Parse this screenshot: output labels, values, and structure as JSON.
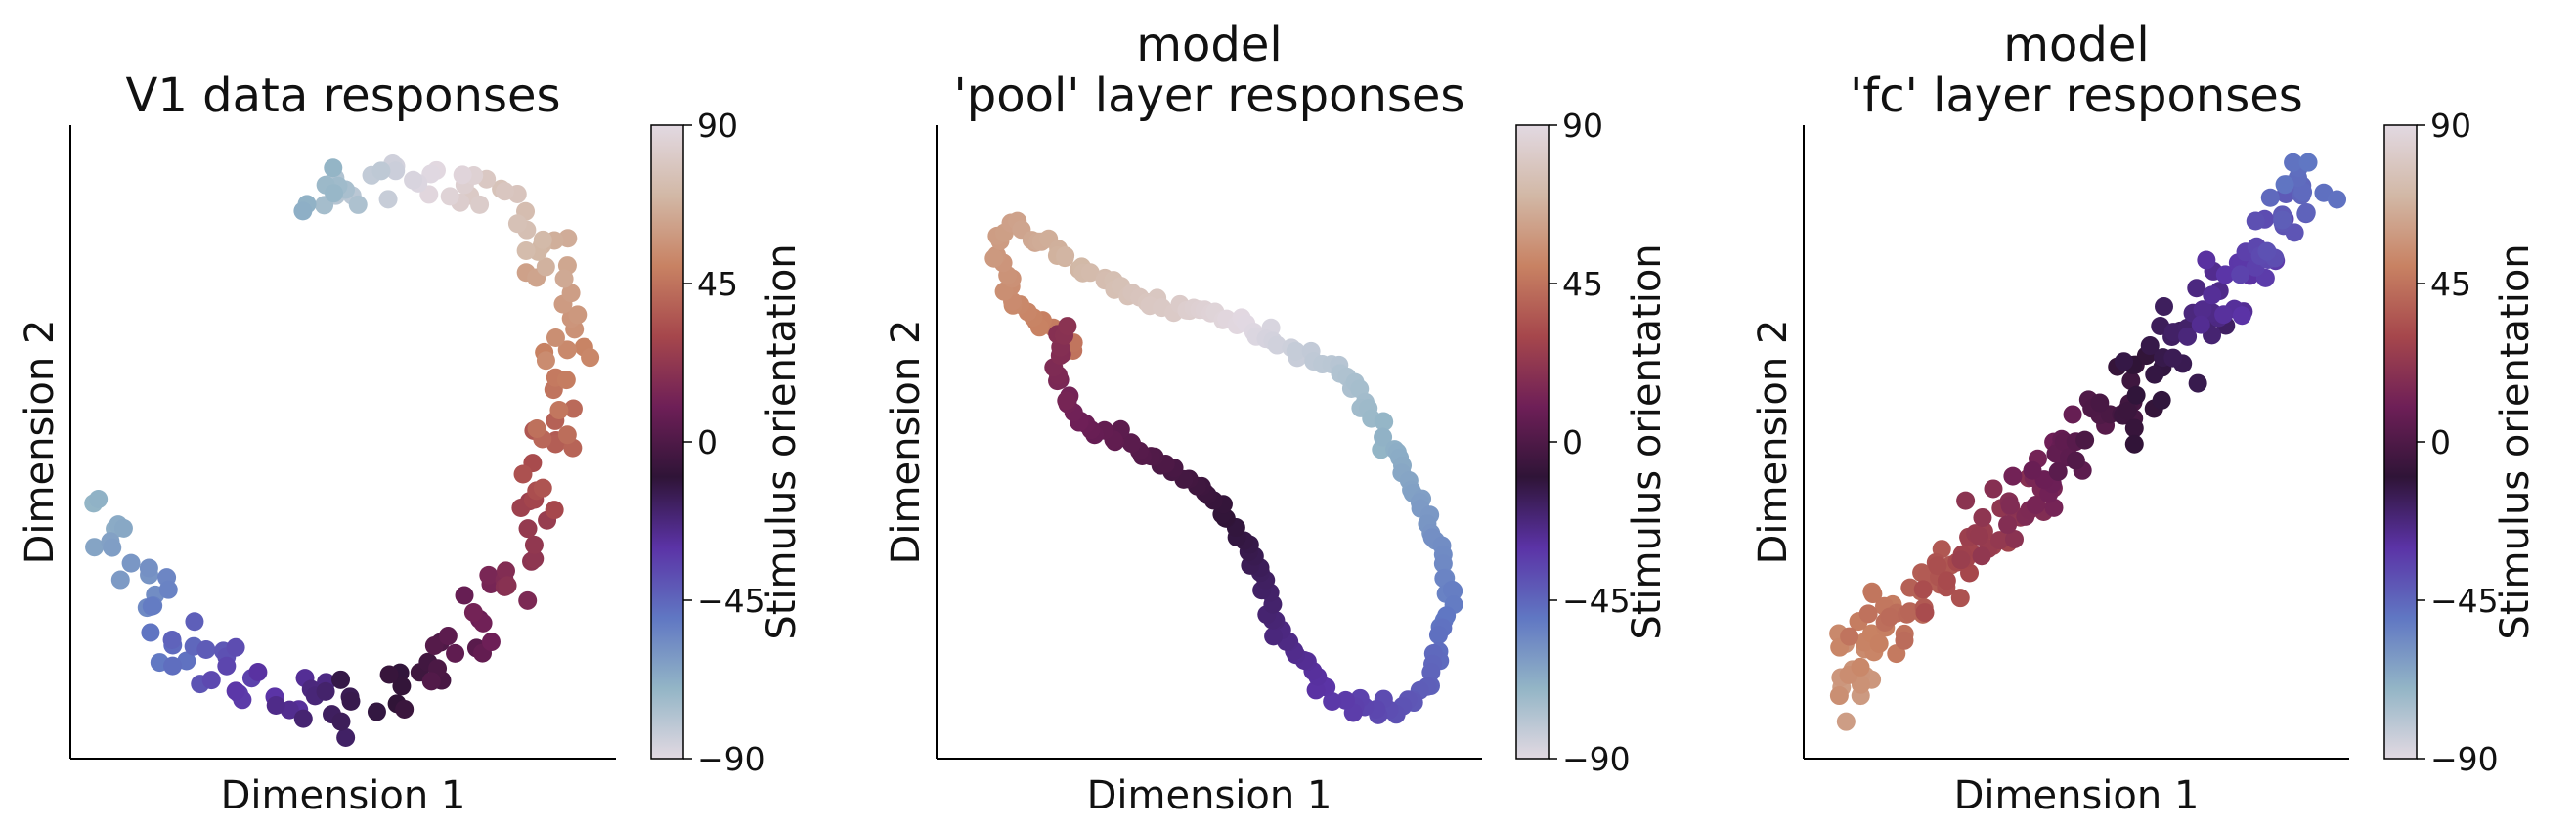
{
  "colormap": [
    "#e2d9e2",
    "#93b5c6",
    "#6077c3",
    "#5b33a6",
    "#2f1437",
    "#6e1f57",
    "#a6474c",
    "#c88263",
    "#d2b8a6",
    "#e2d9e2"
  ],
  "chart_data": [
    {
      "type": "scatter",
      "title_lines": [
        "V1 data responses"
      ],
      "xlabel": "Dimension 1",
      "ylabel": "Dimension 2",
      "colorbar": {
        "label": "Stimulus orientation",
        "range": [
          -90,
          90
        ],
        "ticks": [
          "90",
          "45",
          "0",
          "−45",
          "−90"
        ],
        "tick_values": [
          90,
          45,
          0,
          -45,
          -90
        ]
      },
      "xlim": [
        0,
        100
      ],
      "ylim": [
        0,
        100
      ],
      "curve": [
        [
          5,
          38
        ],
        [
          8,
          37
        ],
        [
          12,
          30
        ],
        [
          18,
          20
        ],
        [
          25,
          16
        ],
        [
          32,
          12
        ],
        [
          40,
          9
        ],
        [
          48,
          8
        ],
        [
          57,
          10
        ],
        [
          66,
          13
        ],
        [
          74,
          20
        ],
        [
          80,
          28
        ],
        [
          86,
          40
        ],
        [
          90,
          55
        ],
        [
          91,
          67
        ],
        [
          88,
          78
        ],
        [
          82,
          86
        ],
        [
          75,
          90
        ],
        [
          68,
          92
        ],
        [
          55,
          91
        ],
        [
          45,
          90
        ],
        [
          43,
          88
        ]
      ],
      "orientation_start": -70,
      "orientation_end": 112,
      "points": 170,
      "jitter": 2.4
    },
    {
      "type": "scatter",
      "title_lines": [
        "model",
        "'pool' layer responses"
      ],
      "xlabel": "Dimension 1",
      "ylabel": "Dimension 2",
      "colorbar": {
        "label": "Stimulus orientation",
        "range": [
          -90,
          90
        ],
        "ticks": [
          "90",
          "45",
          "0",
          "−45",
          "−90"
        ],
        "tick_values": [
          90,
          45,
          0,
          -45,
          -90
        ]
      },
      "xlim": [
        0,
        100
      ],
      "ylim": [
        0,
        100
      ],
      "curve": [
        [
          25,
          65
        ],
        [
          21,
          68
        ],
        [
          17,
          70
        ],
        [
          14,
          73
        ],
        [
          12,
          77
        ],
        [
          11,
          81
        ],
        [
          13,
          84
        ],
        [
          18,
          82
        ],
        [
          24,
          79
        ],
        [
          30,
          76
        ],
        [
          36,
          73
        ],
        [
          44,
          71
        ],
        [
          52,
          70
        ],
        [
          60,
          67
        ],
        [
          68,
          64
        ],
        [
          75,
          61
        ],
        [
          78,
          57
        ],
        [
          82,
          51
        ],
        [
          86,
          45
        ],
        [
          90,
          38
        ],
        [
          93,
          32
        ],
        [
          94,
          25
        ],
        [
          93,
          20
        ],
        [
          91,
          14
        ],
        [
          88,
          9
        ],
        [
          84,
          8
        ],
        [
          79,
          8
        ],
        [
          74,
          9
        ],
        [
          69,
          13
        ],
        [
          65,
          17
        ],
        [
          62,
          22
        ],
        [
          58,
          32
        ],
        [
          52,
          40
        ],
        [
          45,
          45
        ],
        [
          37,
          49
        ],
        [
          28,
          52
        ],
        [
          24,
          56
        ],
        [
          22,
          60
        ],
        [
          22,
          65
        ],
        [
          24,
          68
        ]
      ],
      "orientation_start": -135,
      "orientation_end": 20,
      "points": 220,
      "jitter": 0.6
    },
    {
      "type": "scatter",
      "title_lines": [
        "model",
        "'fc' layer responses"
      ],
      "xlabel": "Dimension 1",
      "ylabel": "Dimension 2",
      "colorbar": {
        "label": "Stimulus orientation",
        "range": [
          -90,
          90
        ],
        "ticks": [
          "90",
          "45",
          "0",
          "−45",
          "−90"
        ],
        "tick_values": [
          90,
          45,
          0,
          -45,
          -90
        ]
      },
      "xlim": [
        0,
        100
      ],
      "ylim": [
        0,
        100
      ],
      "curve": [
        [
          8,
          8
        ],
        [
          9,
          14
        ],
        [
          12,
          20
        ],
        [
          18,
          23
        ],
        [
          25,
          27
        ],
        [
          32,
          33
        ],
        [
          38,
          39
        ],
        [
          44,
          45
        ],
        [
          50,
          50
        ],
        [
          57,
          55
        ],
        [
          63,
          61
        ],
        [
          70,
          67
        ],
        [
          76,
          73
        ],
        [
          82,
          79
        ],
        [
          88,
          85
        ],
        [
          94,
          92
        ]
      ],
      "orientation_start": 60,
      "orientation_end": -50,
      "points": 210,
      "jitter": 2.6
    }
  ]
}
